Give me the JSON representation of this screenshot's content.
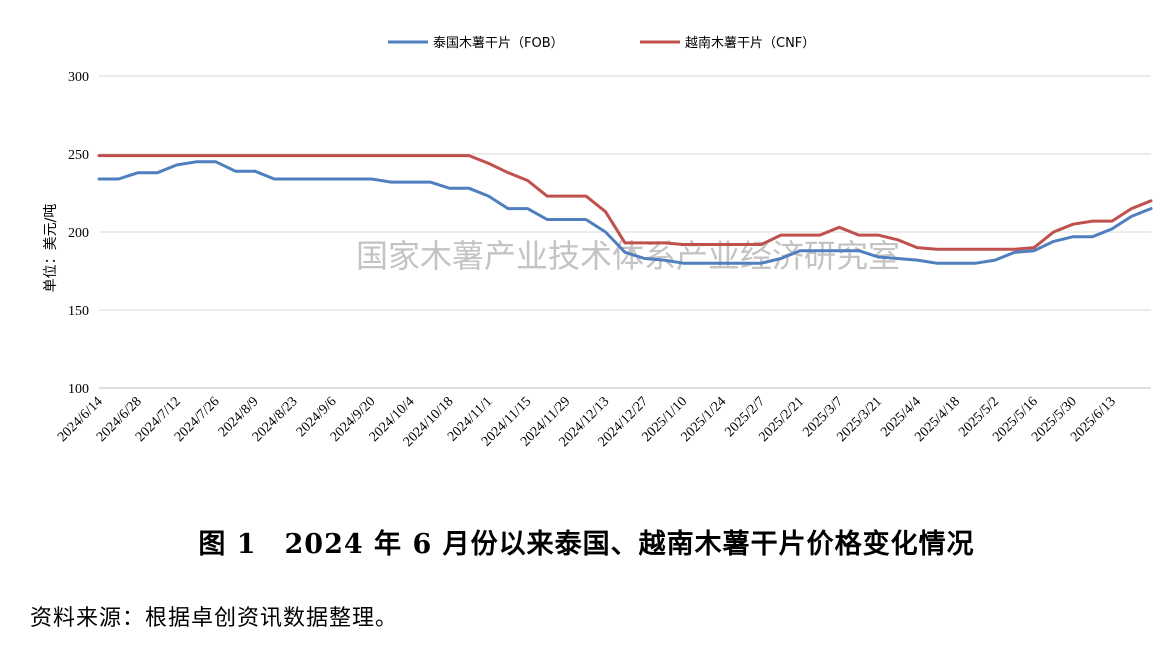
{
  "chart_data": {
    "type": "line",
    "ylabel": "单位：美元/吨",
    "ylim": [
      100,
      300
    ],
    "yticks": [
      "100",
      "150",
      "200",
      "250",
      "300"
    ],
    "grid": true,
    "legend_position": "top-center",
    "x_tick_labels": [
      "2024/6/14",
      "2024/6/28",
      "2024/7/12",
      "2024/7/26",
      "2024/8/9",
      "2024/8/23",
      "2024/9/6",
      "2024/9/20",
      "2024/10/4",
      "2024/10/18",
      "2024/11/1",
      "2024/11/15",
      "2024/11/29",
      "2024/12/13",
      "2024/12/27",
      "2025/1/10",
      "2025/1/24",
      "2025/2/7",
      "2025/2/21",
      "2025/3/7",
      "2025/3/21",
      "2025/4/4",
      "2025/4/18",
      "2025/5/2",
      "2025/5/16",
      "2025/5/30",
      "2025/6/13"
    ],
    "series": [
      {
        "name": "泰国木薯干片（FOB）",
        "color": "#4f7fbf",
        "values": [
          234,
          234,
          238,
          238,
          243,
          245,
          245,
          239,
          239,
          234,
          234,
          234,
          234,
          234,
          234,
          232,
          232,
          232,
          228,
          228,
          223,
          215,
          215,
          208,
          208,
          208,
          200,
          187,
          183,
          182,
          180,
          180,
          180,
          180,
          180,
          183,
          188,
          188,
          188,
          188,
          184,
          183,
          182,
          180,
          180,
          180,
          182,
          187,
          188,
          194,
          197,
          197,
          202,
          210,
          215
        ]
      },
      {
        "name": "越南木薯干片（CNF）",
        "color": "#c0504d",
        "values": [
          249,
          249,
          249,
          249,
          249,
          249,
          249,
          249,
          249,
          249,
          249,
          249,
          249,
          249,
          249,
          249,
          249,
          249,
          249,
          249,
          244,
          238,
          233,
          223,
          223,
          223,
          213,
          193,
          193,
          193,
          192,
          192,
          192,
          192,
          192,
          198,
          198,
          198,
          203,
          198,
          198,
          195,
          190,
          189,
          189,
          189,
          189,
          189,
          190,
          200,
          205,
          207,
          207,
          215,
          220
        ]
      }
    ]
  },
  "watermark": "国家木薯产业技术体系产业经济研究室",
  "caption": "图 1　2024 年 6 月份以来泰国、越南木薯干片价格变化情况",
  "source": "资料来源：根据卓创资讯数据整理。"
}
